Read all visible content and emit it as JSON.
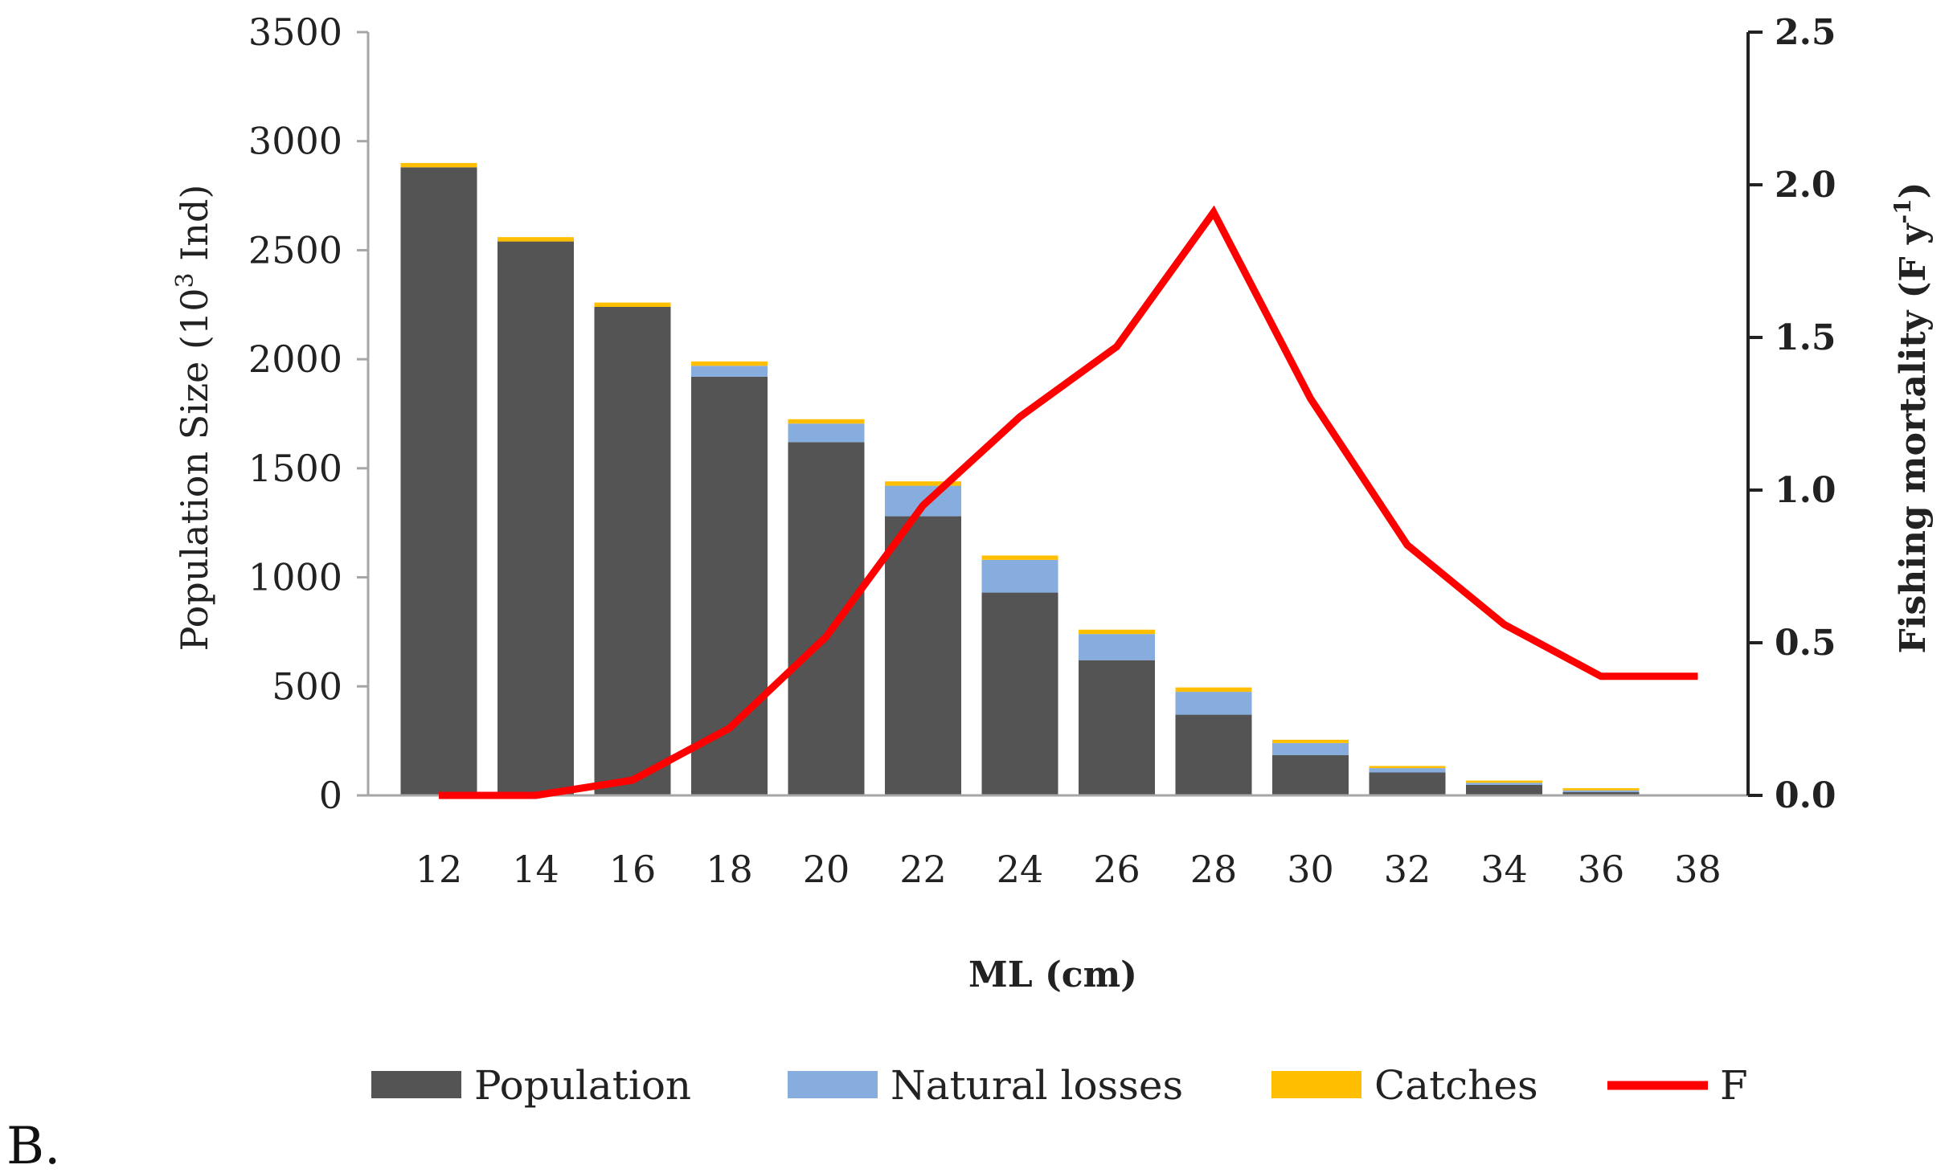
{
  "chart_data": {
    "type": "bar",
    "stacked": true,
    "categories": [
      "12",
      "14",
      "16",
      "18",
      "20",
      "22",
      "24",
      "26",
      "28",
      "30",
      "32",
      "34",
      "36",
      "38"
    ],
    "series": [
      {
        "name": "Population",
        "color": "#545454",
        "values": [
          2880,
          2540,
          2240,
          1920,
          1620,
          1280,
          930,
          620,
          370,
          185,
          105,
          48,
          15,
          0
        ]
      },
      {
        "name": "Natural losses",
        "color": "#87acde",
        "values": [
          0,
          0,
          0,
          50,
          85,
          140,
          150,
          120,
          105,
          55,
          20,
          10,
          8,
          0
        ]
      },
      {
        "name": "Catches",
        "color": "#ffbf00",
        "values": [
          20,
          20,
          20,
          20,
          20,
          20,
          20,
          20,
          20,
          15,
          10,
          10,
          10,
          0
        ]
      }
    ],
    "line_series": {
      "name": "F",
      "color": "#ff0000",
      "axis": "right",
      "values": [
        0.0,
        0.0,
        0.05,
        0.22,
        0.52,
        0.95,
        1.24,
        1.47,
        1.91,
        1.3,
        0.82,
        0.56,
        0.39,
        0.39
      ]
    },
    "xlabel": "ML (cm)",
    "ylabel_left": "Population Size (10³ Ind)",
    "ylabel_left_main": "Population Size (10",
    "ylabel_left_sup": "3",
    "ylabel_left_tail": " Ind)",
    "ylabel_right": "Fishing mortality (F y⁻¹)",
    "ylabel_right_main": "Fishing mortality (F y",
    "ylabel_right_sup": "-1",
    "ylabel_right_tail": ")",
    "ylim_left": [
      0,
      3500
    ],
    "yticks_left": [
      "0",
      "500",
      "1000",
      "1500",
      "2000",
      "2500",
      "3000",
      "3500"
    ],
    "ylim_right": [
      0,
      2.5
    ],
    "yticks_right": [
      "0.0",
      "0.5",
      "1.0",
      "1.5",
      "2.0",
      "2.5"
    ],
    "legend": [
      "Population",
      "Natural losses",
      "Catches",
      "F"
    ],
    "legend_position": "bottom",
    "grid": false
  },
  "panel_label": "B."
}
